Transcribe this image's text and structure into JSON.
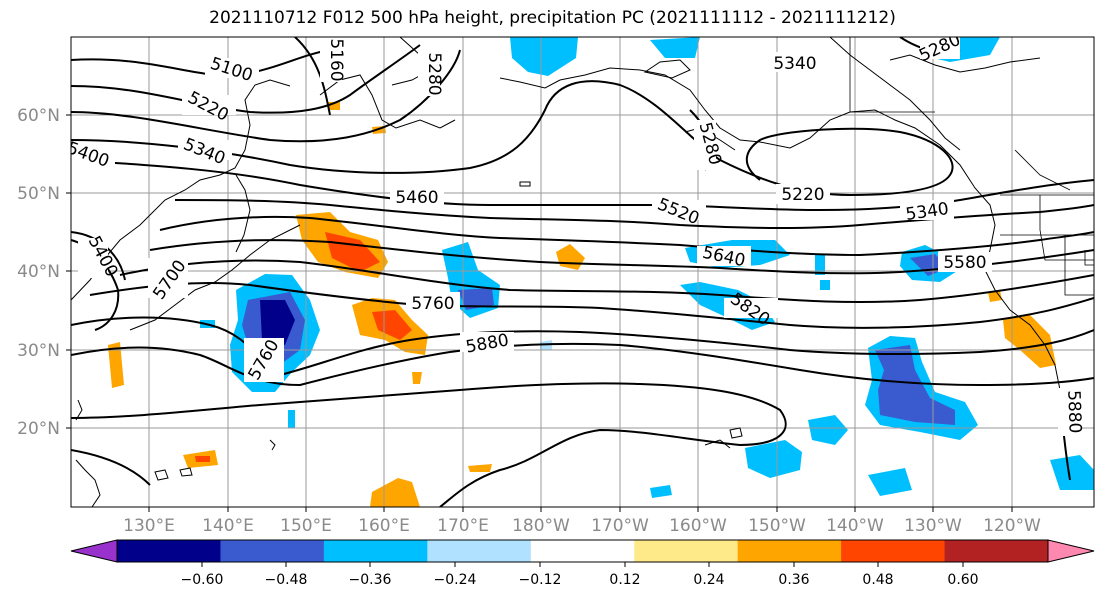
{
  "title": "2021110712 F012 500 hPa height, precipitation PC (2021111112 - 2021111212)",
  "lat_labels": [
    "60°N",
    "50°N",
    "40°N",
    "30°N",
    "20°N"
  ],
  "lon_labels": [
    "130°E",
    "140°E",
    "150°E",
    "160°E",
    "170°E",
    "180°W",
    "170°W",
    "160°W",
    "150°W",
    "140°W",
    "130°W",
    "120°W"
  ],
  "contour_labels": [
    "5100",
    "5160",
    "5280",
    "5340",
    "5220",
    "5340",
    "5400",
    "5460",
    "5520",
    "5280",
    "5220",
    "5340",
    "5400",
    "5700",
    "5640",
    "5580",
    "5760",
    "5820",
    "5880",
    "5760",
    "5880",
    "5280"
  ],
  "colorbar": {
    "tick_labels": [
      "−0.60",
      "−0.48",
      "−0.36",
      "−0.24",
      "−0.12",
      "0.12",
      "0.24",
      "0.36",
      "0.48",
      "0.60"
    ],
    "colors": [
      "#9932cc",
      "#00008b",
      "#3a5bd0",
      "#00bfff",
      "#b0e2ff",
      "#ffffff",
      "#ffea8a",
      "#ffa500",
      "#ff4500",
      "#b22222",
      "#ff88b0"
    ]
  }
}
